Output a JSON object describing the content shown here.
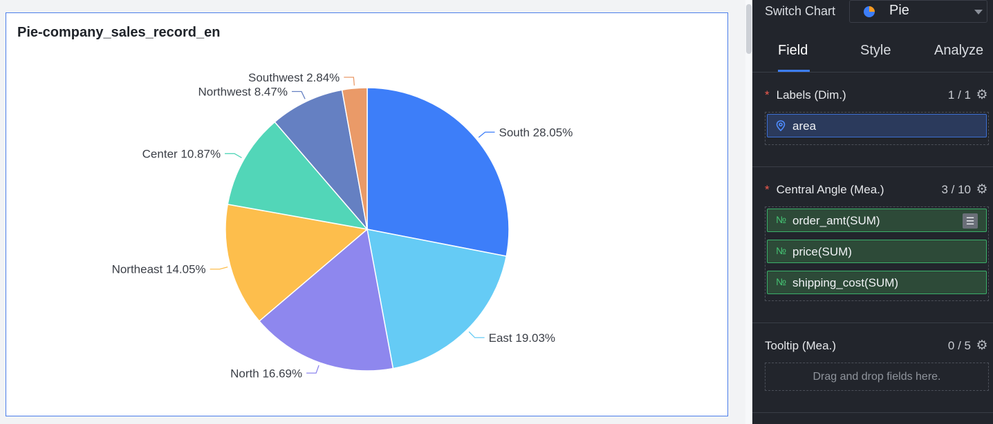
{
  "chart": {
    "title": "Pie-company_sales_record_en"
  },
  "chart_data": {
    "type": "pie",
    "title": "Pie-company_sales_record_en",
    "slices": [
      {
        "label": "South",
        "value": 28.05,
        "display": "South 28.05%",
        "color": "#3d7ef9"
      },
      {
        "label": "East",
        "value": 19.03,
        "display": "East 19.03%",
        "color": "#65cbf5"
      },
      {
        "label": "North",
        "value": 16.69,
        "display": "North 16.69%",
        "color": "#8e87ee"
      },
      {
        "label": "Northeast",
        "value": 14.05,
        "display": "Northeast 14.05%",
        "color": "#fdbe4c"
      },
      {
        "label": "Center",
        "value": 10.87,
        "display": "Center 10.87%",
        "color": "#52d6b8"
      },
      {
        "label": "Northwest",
        "value": 8.47,
        "display": "Northwest 8.47%",
        "color": "#6580c2"
      },
      {
        "label": "Southwest",
        "value": 2.84,
        "display": "Southwest 2.84%",
        "color": "#ea9a68"
      }
    ]
  },
  "panel": {
    "switch_label": "Switch Chart",
    "chart_type": "Pie",
    "tabs": [
      {
        "label": "Field",
        "active": true
      },
      {
        "label": "Style",
        "active": false
      },
      {
        "label": "Analyze",
        "active": false
      }
    ],
    "labels_section": {
      "required": "*",
      "title": "Labels (Dim.)",
      "count": "1 / 1",
      "fields": [
        {
          "name": "area",
          "icon": "location-icon"
        }
      ]
    },
    "angle_section": {
      "required": "*",
      "title": "Central Angle (Mea.)",
      "count": "3 / 10",
      "number_marker": "№",
      "fields": [
        {
          "name": "order_amt(SUM)"
        },
        {
          "name": "price(SUM)"
        },
        {
          "name": "shipping_cost(SUM)"
        }
      ]
    },
    "tooltip_section": {
      "title": "Tooltip (Mea.)",
      "count": "0 / 5",
      "hint": "Drag and drop fields here."
    }
  }
}
